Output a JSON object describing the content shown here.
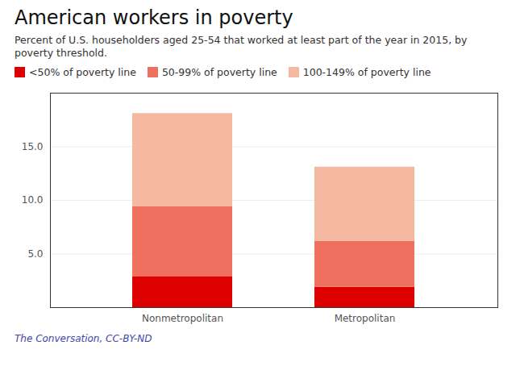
{
  "chart_data": {
    "type": "bar",
    "stacked": true,
    "title": "American workers in poverty",
    "subtitle": "Percent of U.S. householders aged 25-54 that worked at least part of the year in 2015, by poverty threshold.",
    "source": "The Conversation, CC-BY-ND",
    "categories": [
      "Nonmetropolitan",
      "Metropolitan"
    ],
    "series": [
      {
        "name": "<50% of poverty line",
        "color": "#dd0000",
        "values": [
          2.9,
          1.9
        ]
      },
      {
        "name": "50-99% of poverty line",
        "color": "#f07060",
        "values": [
          6.5,
          4.3
        ]
      },
      {
        "name": "100-149% of poverty line",
        "color": "#f5b8a0",
        "values": [
          8.7,
          6.9
        ]
      }
    ],
    "ylim": [
      0,
      20
    ],
    "yticks": [
      {
        "value": 5,
        "label": "5.0"
      },
      {
        "value": 10,
        "label": "10.0"
      },
      {
        "value": 15,
        "label": "15.0"
      }
    ],
    "grid": true,
    "legend": "top"
  }
}
